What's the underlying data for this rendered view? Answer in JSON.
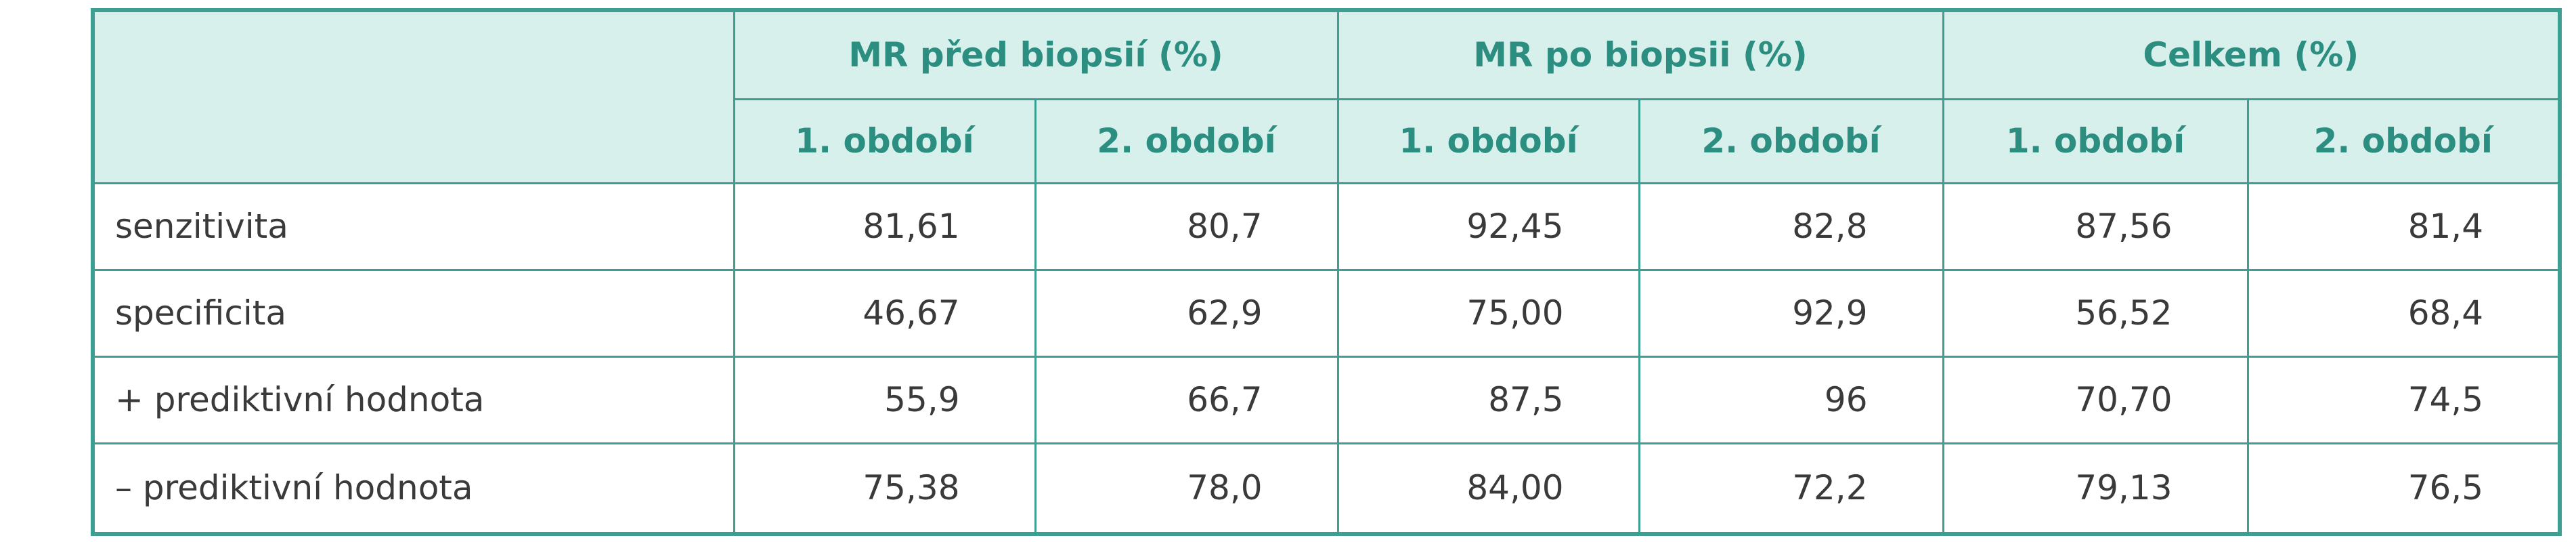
{
  "table": {
    "groups": [
      "MR před biopsií (%)",
      "MR po biopsii (%)",
      "Celkem (%)"
    ],
    "periods": [
      "1. období",
      "2. období",
      "1. období",
      "2. období",
      "1. období",
      "2. období"
    ],
    "rows": [
      {
        "label": "senzitivita",
        "values": [
          "81,61",
          "80,7",
          "92,45",
          "82,8",
          "87,56",
          "81,4"
        ]
      },
      {
        "label": "specificita",
        "values": [
          "46,67",
          "62,9",
          "75,00",
          "92,9",
          "56,52",
          "68,4"
        ]
      },
      {
        "label": "+ prediktivní hodnota",
        "values": [
          "55,9",
          "66,7",
          "87,5",
          "96",
          "70,70",
          "74,5"
        ]
      },
      {
        "label": "– prediktivní hodnota",
        "values": [
          "75,38",
          "78,0",
          "84,00",
          "72,2",
          "79,13",
          "76,5"
        ]
      }
    ]
  }
}
